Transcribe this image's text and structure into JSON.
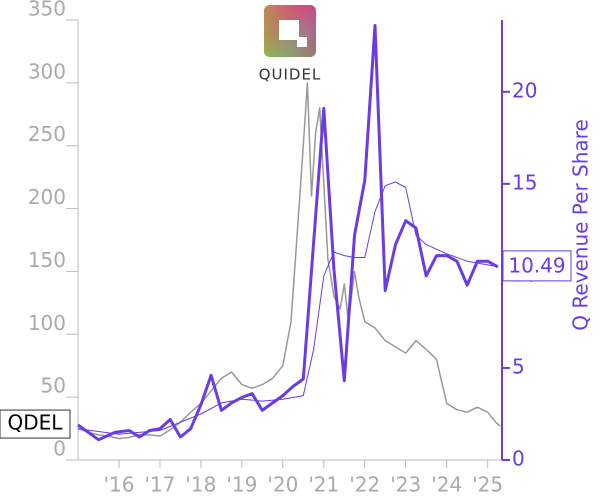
{
  "chart_data": {
    "type": "line",
    "logo_text": "QUIDEL",
    "ylabel2": "Q Revenue Per Share",
    "xlim": [
      2015.0,
      2025.35
    ],
    "xticks": [
      {
        "value": 2016,
        "label": "'16"
      },
      {
        "value": 2017,
        "label": "'17"
      },
      {
        "value": 2018,
        "label": "'18"
      },
      {
        "value": 2019,
        "label": "'19"
      },
      {
        "value": 2020,
        "label": "'20"
      },
      {
        "value": 2021,
        "label": "'21"
      },
      {
        "value": 2022,
        "label": "'22"
      },
      {
        "value": 2023,
        "label": "'23"
      },
      {
        "value": 2024,
        "label": "'24"
      },
      {
        "value": 2025,
        "label": "'25"
      }
    ],
    "ylim": [
      0,
      350
    ],
    "yticks": [
      0,
      50,
      100,
      150,
      200,
      250,
      300,
      350
    ],
    "y2lim": [
      0,
      23.9
    ],
    "y2ticks": [
      0,
      5,
      10,
      15,
      20
    ],
    "series": [
      {
        "name": "QDEL",
        "color": "#999999",
        "width": 1.5,
        "x": [
          2015.0,
          2015.25,
          2015.5,
          2015.75,
          2016.0,
          2016.25,
          2016.5,
          2016.75,
          2017.0,
          2017.25,
          2017.5,
          2017.75,
          2018.0,
          2018.25,
          2018.5,
          2018.75,
          2019.0,
          2019.25,
          2019.5,
          2019.75,
          2020.0,
          2020.2,
          2020.35,
          2020.5,
          2020.6,
          2020.7,
          2020.8,
          2020.9,
          2021.0,
          2021.1,
          2021.25,
          2021.4,
          2021.5,
          2021.6,
          2021.75,
          2021.85,
          2022.0,
          2022.25,
          2022.5,
          2022.75,
          2023.0,
          2023.25,
          2023.5,
          2023.75,
          2024.0,
          2024.25,
          2024.5,
          2024.75,
          2025.0,
          2025.2,
          2025.3
        ],
        "values": [
          25,
          22,
          20,
          19,
          17,
          18,
          20,
          20,
          19,
          24,
          30,
          38,
          45,
          55,
          65,
          70,
          60,
          57,
          60,
          65,
          75,
          110,
          180,
          250,
          300,
          210,
          260,
          280,
          220,
          160,
          130,
          120,
          140,
          110,
          150,
          130,
          110,
          105,
          95,
          90,
          85,
          95,
          88,
          80,
          45,
          40,
          38,
          42,
          38,
          30,
          27
        ]
      },
      {
        "color": "#6a3ce6",
        "width": 3,
        "axis": "y2",
        "x": [
          2015.0,
          2015.5,
          2015.9,
          2016.25,
          2016.5,
          2016.75,
          2017.0,
          2017.25,
          2017.5,
          2017.75,
          2018.0,
          2018.25,
          2018.5,
          2018.75,
          2019.0,
          2019.25,
          2019.5,
          2019.75,
          2020.0,
          2020.25,
          2020.5,
          2020.75,
          2021.0,
          2021.25,
          2021.5,
          2021.75,
          2022.0,
          2022.25,
          2022.5,
          2022.75,
          2023.0,
          2023.25,
          2023.5,
          2023.75,
          2024.0,
          2024.25,
          2024.5,
          2024.75,
          2025.0,
          2025.25
        ],
        "values": [
          1.9,
          1.1,
          1.5,
          1.6,
          1.25,
          1.6,
          1.7,
          2.2,
          1.25,
          1.7,
          3.0,
          4.6,
          2.7,
          3.1,
          3.4,
          3.6,
          2.7,
          3.1,
          3.5,
          4.0,
          4.4,
          11.8,
          19.1,
          10.3,
          4.3,
          12.2,
          15.2,
          23.6,
          9.2,
          11.7,
          13.0,
          12.6,
          10.0,
          11.1,
          11.1,
          10.8,
          9.5,
          10.8,
          10.8,
          10.49
        ]
      },
      {
        "color": "#6a3ce6",
        "width": 1,
        "axis": "y2",
        "x": [
          2015.0,
          2016.0,
          2017.0,
          2018.0,
          2018.5,
          2019.0,
          2019.5,
          2020.0,
          2020.5,
          2020.75,
          2021.0,
          2021.25,
          2021.5,
          2021.75,
          2022.0,
          2022.25,
          2022.5,
          2022.75,
          2023.0,
          2023.25,
          2023.5,
          2024.0,
          2024.5,
          2025.0,
          2025.25
        ],
        "values": [
          1.7,
          1.4,
          1.6,
          2.5,
          3.1,
          3.3,
          3.2,
          3.3,
          3.5,
          6.0,
          10.0,
          11.3,
          11.1,
          11.0,
          11.0,
          13.5,
          14.9,
          15.1,
          14.8,
          12.2,
          11.7,
          11.2,
          10.8,
          10.6,
          10.5
        ]
      }
    ]
  }
}
